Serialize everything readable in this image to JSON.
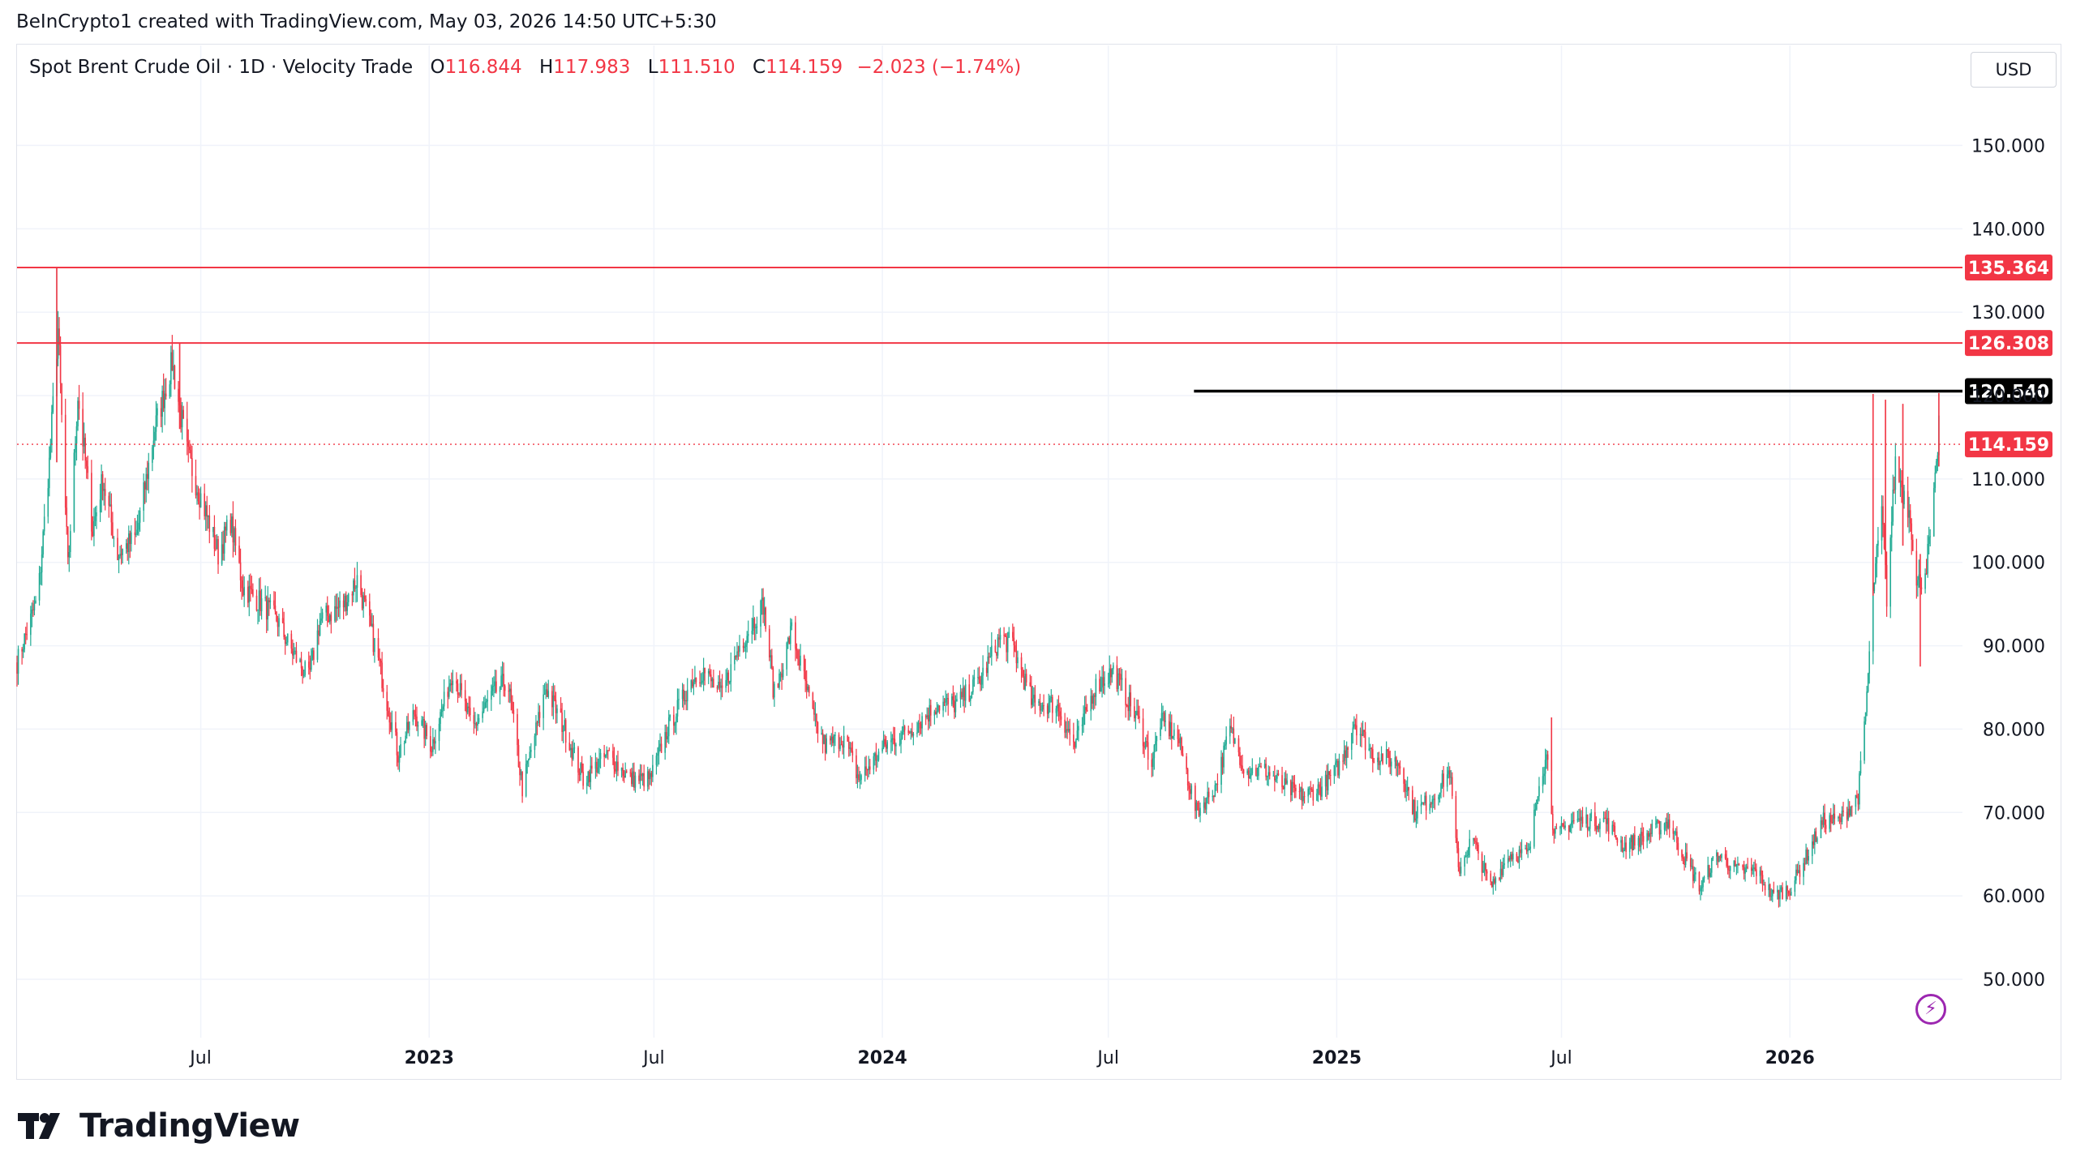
{
  "credit": "BeInCrypto1 created with TradingView.com, May 03, 2026 14:50 UTC+5:30",
  "legend": {
    "symbol": "Spot Brent Crude Oil · 1D · Velocity Trade",
    "o_key": "O",
    "o_val": "116.844",
    "h_key": "H",
    "h_val": "117.983",
    "l_key": "L",
    "l_val": "111.510",
    "c_key": "C",
    "c_val": "114.159",
    "change": "−2.023 (−1.74%)"
  },
  "currency": "USD",
  "brand": {
    "name": "TradingView",
    "logo_icon": "tradingview-logo-icon"
  },
  "colors": {
    "up": "#22ab94",
    "down": "#f23645",
    "level": "#f23645",
    "black": "#000000",
    "grid": "#f0f3fa"
  },
  "chart_data": {
    "type": "candlestick",
    "instrument": "Spot Brent Crude Oil",
    "interval": "1D",
    "ylim": [
      43,
      162
    ],
    "y_ticks": [
      "150.000",
      "140.000",
      "130.000",
      "120.000",
      "110.000",
      "100.000",
      "90.000",
      "80.000",
      "70.000",
      "60.000",
      "50.000"
    ],
    "x_ticks": [
      {
        "label": "Jul",
        "date": "2022-07-01",
        "bold": false
      },
      {
        "label": "2023",
        "date": "2023-01-01",
        "bold": true
      },
      {
        "label": "Jul",
        "date": "2023-07-01",
        "bold": false
      },
      {
        "label": "2024",
        "date": "2024-01-01",
        "bold": true
      },
      {
        "label": "Jul",
        "date": "2024-07-01",
        "bold": false
      },
      {
        "label": "2025",
        "date": "2025-01-01",
        "bold": true
      },
      {
        "label": "Jul",
        "date": "2025-07-01",
        "bold": false
      },
      {
        "label": "2026",
        "date": "2026-01-01",
        "bold": true
      }
    ],
    "x_range": [
      "2022-02-03",
      "2026-05-20"
    ],
    "horizontal_levels": [
      {
        "value": 135.364,
        "label": "135.364",
        "color": "#f23645",
        "from": "2022-02-03"
      },
      {
        "value": 126.308,
        "label": "126.308",
        "color": "#f23645",
        "from": "2022-02-03"
      },
      {
        "value": 120.54,
        "label": "120.540",
        "color": "#000000",
        "from": "2024-09-08"
      }
    ],
    "last_price": {
      "value": 114.159,
      "label": "114.159",
      "color": "#f23645"
    },
    "price_path": [
      [
        "2022-02-03",
        88
      ],
      [
        "2022-02-20",
        96
      ],
      [
        "2022-03-01",
        112
      ],
      [
        "2022-03-08",
        128
      ],
      [
        "2022-03-16",
        99
      ],
      [
        "2022-03-24",
        120
      ],
      [
        "2022-04-05",
        104
      ],
      [
        "2022-04-13",
        110
      ],
      [
        "2022-04-25",
        101
      ],
      [
        "2022-05-10",
        103
      ],
      [
        "2022-05-25",
        116
      ],
      [
        "2022-06-08",
        124
      ],
      [
        "2022-06-20",
        113
      ],
      [
        "2022-07-05",
        106
      ],
      [
        "2022-07-15",
        101
      ],
      [
        "2022-07-25",
        105
      ],
      [
        "2022-08-04",
        97
      ],
      [
        "2022-08-20",
        95
      ],
      [
        "2022-09-01",
        93
      ],
      [
        "2022-09-10",
        90
      ],
      [
        "2022-09-26",
        86
      ],
      [
        "2022-10-05",
        93
      ],
      [
        "2022-10-24",
        95
      ],
      [
        "2022-11-04",
        98
      ],
      [
        "2022-11-20",
        89
      ],
      [
        "2022-12-07",
        77
      ],
      [
        "2022-12-20",
        82
      ],
      [
        "2023-01-03",
        78
      ],
      [
        "2023-01-20",
        87
      ],
      [
        "2023-02-05",
        80
      ],
      [
        "2023-02-20",
        84
      ],
      [
        "2023-03-05",
        86
      ],
      [
        "2023-03-17",
        73
      ],
      [
        "2023-04-05",
        85
      ],
      [
        "2023-04-20",
        80
      ],
      [
        "2023-05-05",
        74
      ],
      [
        "2023-05-25",
        77
      ],
      [
        "2023-06-12",
        74
      ],
      [
        "2023-06-28",
        74
      ],
      [
        "2023-07-12",
        80
      ],
      [
        "2023-08-01",
        86
      ],
      [
        "2023-08-10",
        87
      ],
      [
        "2023-08-24",
        84
      ],
      [
        "2023-09-08",
        90
      ],
      [
        "2023-09-27",
        95
      ],
      [
        "2023-10-06",
        84
      ],
      [
        "2023-10-20",
        92
      ],
      [
        "2023-11-07",
        81
      ],
      [
        "2023-11-16",
        78
      ],
      [
        "2023-12-01",
        79
      ],
      [
        "2023-12-13",
        74
      ],
      [
        "2024-01-03",
        78
      ],
      [
        "2024-01-24",
        80
      ],
      [
        "2024-02-15",
        83
      ],
      [
        "2024-03-01",
        83
      ],
      [
        "2024-03-20",
        86
      ],
      [
        "2024-04-05",
        91
      ],
      [
        "2024-04-15",
        90
      ],
      [
        "2024-05-01",
        83
      ],
      [
        "2024-05-20",
        83
      ],
      [
        "2024-06-04",
        78
      ],
      [
        "2024-06-20",
        85
      ],
      [
        "2024-07-05",
        87
      ],
      [
        "2024-07-25",
        81
      ],
      [
        "2024-08-05",
        76
      ],
      [
        "2024-08-12",
        81
      ],
      [
        "2024-08-26",
        79
      ],
      [
        "2024-09-10",
        70
      ],
      [
        "2024-09-25",
        73
      ],
      [
        "2024-10-07",
        80
      ],
      [
        "2024-10-20",
        75
      ],
      [
        "2024-11-05",
        75
      ],
      [
        "2024-11-20",
        73
      ],
      [
        "2024-12-05",
        72
      ],
      [
        "2024-12-20",
        73
      ],
      [
        "2025-01-05",
        76
      ],
      [
        "2025-01-15",
        81
      ],
      [
        "2025-01-30",
        77
      ],
      [
        "2025-02-20",
        76
      ],
      [
        "2025-03-05",
        70
      ],
      [
        "2025-03-20",
        72
      ],
      [
        "2025-04-02",
        75
      ],
      [
        "2025-04-09",
        63
      ],
      [
        "2025-04-20",
        67
      ],
      [
        "2025-05-05",
        61
      ],
      [
        "2025-05-20",
        65
      ],
      [
        "2025-06-05",
        65
      ],
      [
        "2025-06-13",
        74
      ],
      [
        "2025-06-20",
        77
      ],
      [
        "2025-06-25",
        67
      ],
      [
        "2025-07-10",
        69
      ],
      [
        "2025-07-25",
        69
      ],
      [
        "2025-08-05",
        69
      ],
      [
        "2025-08-20",
        66
      ],
      [
        "2025-09-05",
        67
      ],
      [
        "2025-09-25",
        69
      ],
      [
        "2025-10-10",
        64
      ],
      [
        "2025-10-21",
        61
      ],
      [
        "2025-11-03",
        65
      ],
      [
        "2025-11-20",
        63
      ],
      [
        "2025-12-05",
        63
      ],
      [
        "2025-12-18",
        60
      ],
      [
        "2026-01-02",
        61
      ],
      [
        "2026-01-15",
        65
      ],
      [
        "2026-01-28",
        69
      ],
      [
        "2026-02-10",
        69
      ],
      [
        "2026-02-25",
        72
      ],
      [
        "2026-03-03",
        82
      ],
      [
        "2026-03-10",
        98
      ],
      [
        "2026-03-16",
        106
      ],
      [
        "2026-03-20",
        96
      ],
      [
        "2026-03-27",
        112
      ],
      [
        "2026-04-03",
        108
      ],
      [
        "2026-04-08",
        106
      ],
      [
        "2026-04-13",
        97
      ],
      [
        "2026-04-20",
        99
      ],
      [
        "2026-04-25",
        104
      ],
      [
        "2026-04-29",
        111
      ],
      [
        "2026-05-01",
        116.8
      ],
      [
        "2026-05-03",
        114.159
      ]
    ],
    "spikes": [
      [
        "2022-03-07",
        135.364,
        112
      ],
      [
        "2022-06-14",
        126.308,
        116
      ],
      [
        "2026-03-09",
        120.2,
        96
      ],
      [
        "2026-03-19",
        119.5,
        98
      ],
      [
        "2026-04-02",
        119,
        102
      ],
      [
        "2026-04-16",
        87.5,
        101
      ],
      [
        "2026-05-01",
        120.3,
        111.5
      ],
      [
        "2025-06-23",
        81.4,
        75
      ]
    ]
  }
}
